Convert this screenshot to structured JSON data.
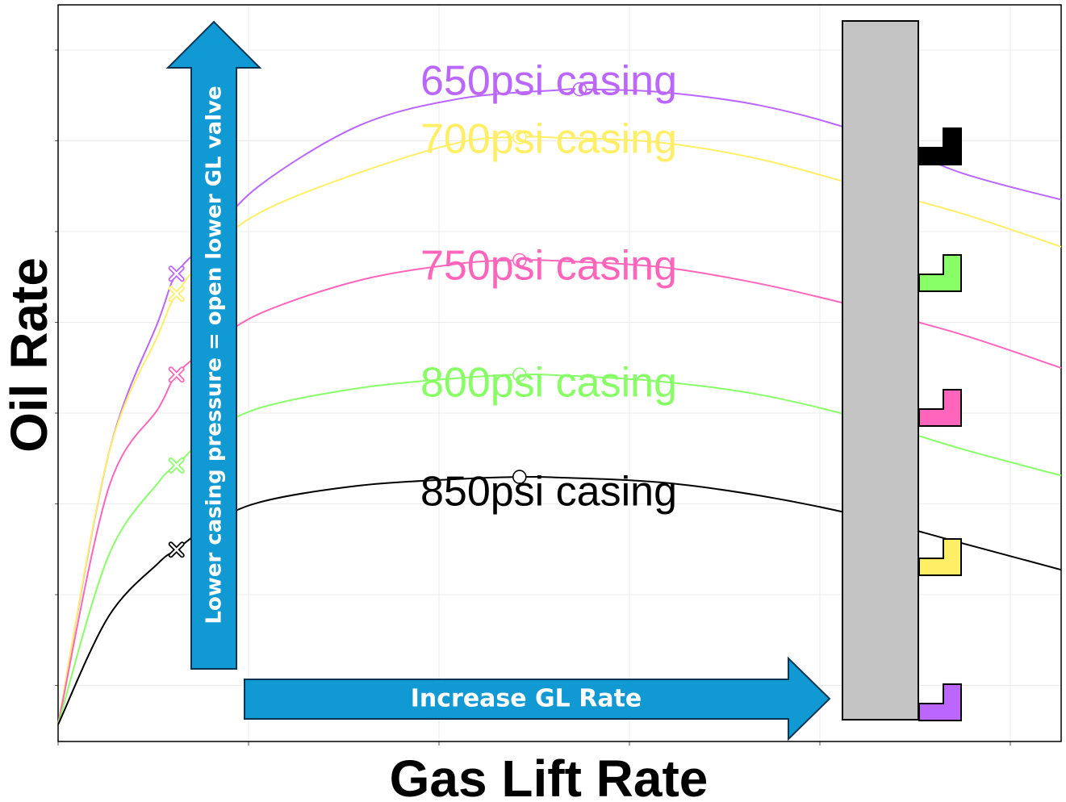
{
  "chart_data": {
    "type": "line",
    "title": "",
    "xlabel": "Gas Lift Rate",
    "ylabel": "Oil Rate",
    "grid": true,
    "tick_labels_shown": false,
    "xlim": [
      0,
      1
    ],
    "ylim": [
      0,
      1
    ],
    "series": [
      {
        "name": "650psi casing",
        "color": "#bb66ff",
        "x": [
          0.0,
          0.05,
          0.1,
          0.118,
          0.15,
          0.2,
          0.3,
          0.4,
          0.5,
          0.52,
          0.6,
          0.7,
          0.8,
          0.9,
          1.0
        ],
        "y": [
          0.0,
          0.4,
          0.6,
          0.67,
          0.72,
          0.8,
          0.89,
          0.93,
          0.943,
          0.944,
          0.94,
          0.92,
          0.88,
          0.82,
          0.78
        ],
        "valve_open_x": 0.118,
        "optimum_x": 0.52
      },
      {
        "name": "700psi casing",
        "color": "#ffee66",
        "x": [
          0.0,
          0.05,
          0.1,
          0.118,
          0.15,
          0.2,
          0.3,
          0.4,
          0.46,
          0.5,
          0.6,
          0.7,
          0.8,
          0.9,
          1.0
        ],
        "y": [
          0.0,
          0.4,
          0.58,
          0.64,
          0.7,
          0.76,
          0.82,
          0.865,
          0.873,
          0.872,
          0.865,
          0.84,
          0.8,
          0.76,
          0.71
        ],
        "valve_open_x": 0.118,
        "optimum_x": 0.46
      },
      {
        "name": "750psi casing",
        "color": "#ff66bb",
        "x": [
          0.0,
          0.05,
          0.1,
          0.118,
          0.15,
          0.2,
          0.3,
          0.4,
          0.46,
          0.5,
          0.6,
          0.7,
          0.8,
          0.9,
          1.0
        ],
        "y": [
          0.0,
          0.35,
          0.47,
          0.52,
          0.56,
          0.61,
          0.66,
          0.685,
          0.69,
          0.689,
          0.68,
          0.655,
          0.62,
          0.58,
          0.53
        ],
        "valve_open_x": 0.118,
        "optimum_x": 0.46
      },
      {
        "name": "800psi casing",
        "color": "#88ff66",
        "x": [
          0.0,
          0.05,
          0.1,
          0.118,
          0.15,
          0.2,
          0.3,
          0.4,
          0.46,
          0.5,
          0.6,
          0.7,
          0.8,
          0.9,
          1.0
        ],
        "y": [
          0.0,
          0.25,
          0.36,
          0.385,
          0.43,
          0.47,
          0.5,
          0.515,
          0.52,
          0.519,
          0.51,
          0.49,
          0.455,
          0.41,
          0.37
        ],
        "valve_open_x": 0.118,
        "optimum_x": 0.46
      },
      {
        "name": "850psi casing",
        "color": "#000000",
        "x": [
          0.0,
          0.05,
          0.1,
          0.118,
          0.15,
          0.2,
          0.3,
          0.4,
          0.46,
          0.5,
          0.6,
          0.7,
          0.8,
          0.9,
          1.0
        ],
        "y": [
          0.0,
          0.16,
          0.24,
          0.26,
          0.295,
          0.33,
          0.355,
          0.365,
          0.368,
          0.367,
          0.36,
          0.34,
          0.31,
          0.27,
          0.23
        ],
        "valve_open_x": 0.118,
        "optimum_x": 0.46
      }
    ],
    "annotations": [
      {
        "text": "Lower casing pressure = open lower GL valve",
        "kind": "arrow-up",
        "color": "#1199d4"
      },
      {
        "text": "Increase GL Rate",
        "kind": "arrow-right",
        "color": "#1199d4"
      }
    ],
    "wellbore_diagram": {
      "tubing_color": "#c4c4c4",
      "valves": [
        {
          "color": "#000000"
        },
        {
          "color": "#88ff66"
        },
        {
          "color": "#ff66bb"
        },
        {
          "color": "#ffee66"
        },
        {
          "color": "#bb66ff"
        }
      ]
    }
  }
}
